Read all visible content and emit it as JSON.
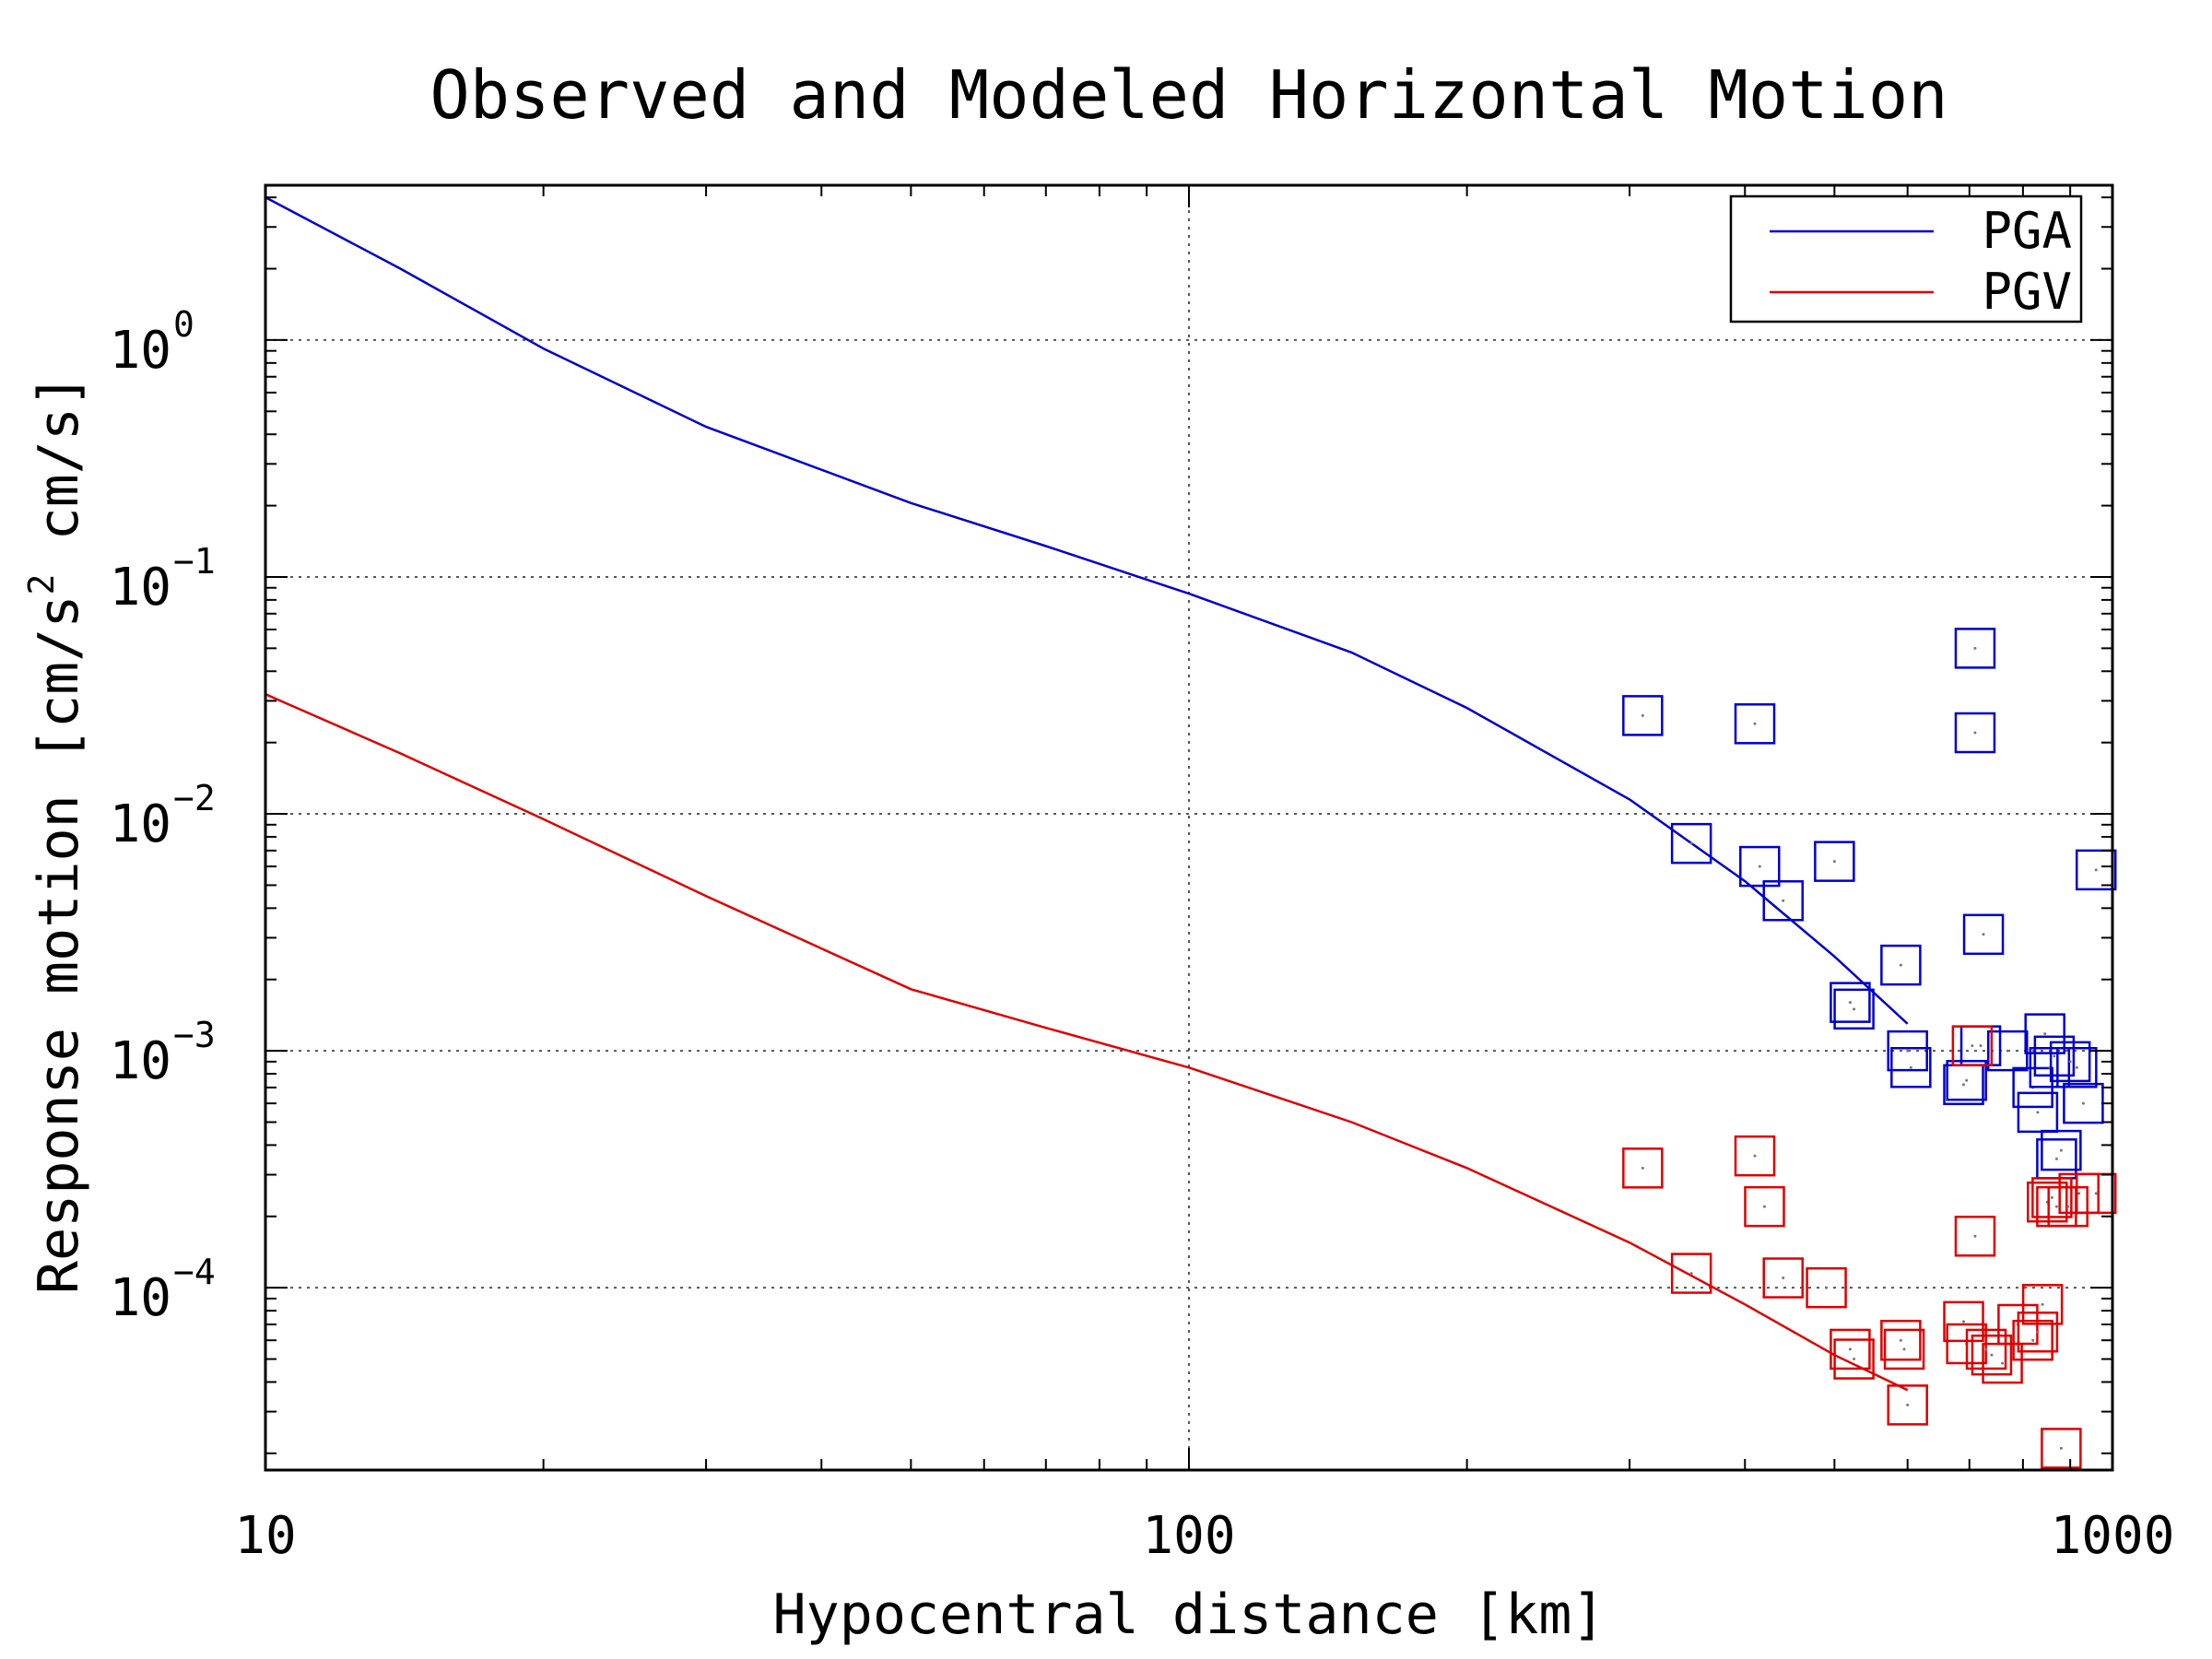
{
  "chart_data": {
    "type": "scatter",
    "title": "Observed and Modeled Horizontal Motion",
    "xlabel": "Hypocentral distance [km]",
    "ylabel": "Response motion [cm/s",
    "ylabel_sup": "2",
    "ylabel_tail": " cm/s]",
    "x_scale": "log",
    "y_scale": "log",
    "xlim": [
      10,
      1000
    ],
    "ylim": [
      1.7e-05,
      4.5
    ],
    "x_ticks": [
      {
        "value": 10,
        "label": "10"
      },
      {
        "value": 100,
        "label": "100"
      },
      {
        "value": 1000,
        "label": "1000"
      }
    ],
    "y_ticks": [
      {
        "value": 1,
        "base": "10",
        "exp": "0"
      },
      {
        "value": 0.1,
        "base": "10",
        "exp": "−1"
      },
      {
        "value": 0.01,
        "base": "10",
        "exp": "−2"
      },
      {
        "value": 0.001,
        "base": "10",
        "exp": "−3"
      },
      {
        "value": 0.0001,
        "base": "10",
        "exp": "−4"
      }
    ],
    "grid": true,
    "legend_position": "top-right",
    "series": [
      {
        "name": "PGA",
        "color": "#0000cc",
        "kind": "line",
        "x": [
          10,
          14,
          20,
          30,
          50,
          70,
          100,
          150,
          200,
          300,
          400,
          500,
          600
        ],
        "y": [
          4.0,
          2.0,
          0.92,
          0.43,
          0.205,
          0.135,
          0.085,
          0.048,
          0.028,
          0.0115,
          0.0052,
          0.0025,
          0.0013
        ]
      },
      {
        "name": "PGV",
        "color": "#dd0000",
        "kind": "line",
        "x": [
          10,
          14,
          20,
          30,
          50,
          70,
          100,
          150,
          200,
          300,
          400,
          500,
          600
        ],
        "y": [
          0.032,
          0.018,
          0.0095,
          0.0045,
          0.00182,
          0.00125,
          0.00085,
          0.0005,
          0.00032,
          0.000155,
          8.5e-05,
          5.2e-05,
          3.7e-05
        ]
      }
    ],
    "observations": [
      {
        "series": "PGA",
        "color": "#0000cc",
        "x": [
          310,
          350,
          410,
          415,
          440,
          500,
          520,
          525,
          590,
          600,
          605,
          690,
          695,
          710,
          710,
          720,
          725,
          770,
          820,
          830,
          845,
          855,
          865,
          870,
          880,
          900,
          915,
          930,
          960
        ],
        "y": [
          0.026,
          0.0075,
          0.024,
          0.006,
          0.0043,
          0.0063,
          0.0016,
          0.0015,
          0.0023,
          0.001,
          0.00085,
          0.00072,
          0.00075,
          0.05,
          0.022,
          0.00105,
          0.0031,
          0.001,
          0.0007,
          0.00055,
          0.00118,
          0.00085,
          0.00095,
          0.00035,
          0.00038,
          0.0009,
          0.00085,
          0.0006,
          0.0058
        ]
      },
      {
        "series": "PGV",
        "color": "#dd0000",
        "x": [
          310,
          350,
          410,
          420,
          440,
          490,
          520,
          525,
          590,
          595,
          600,
          690,
          695,
          705,
          710,
          730,
          740,
          760,
          790,
          820,
          830,
          840,
          850,
          860,
          870,
          880,
          895,
          920,
          960
        ],
        "y": [
          0.00032,
          0.000115,
          0.00036,
          0.00022,
          0.00011,
          0.0001,
          5.5e-05,
          5e-05,
          6e-05,
          5.5e-05,
          3.2e-05,
          7.2e-05,
          5.8e-05,
          0.00105,
          0.000165,
          5.5e-05,
          5.2e-05,
          4.8e-05,
          7e-05,
          6e-05,
          6.5e-05,
          8.5e-05,
          0.00023,
          0.00024,
          0.00022,
          2.1e-05,
          0.00022,
          0.00025,
          0.00025
        ]
      }
    ]
  }
}
